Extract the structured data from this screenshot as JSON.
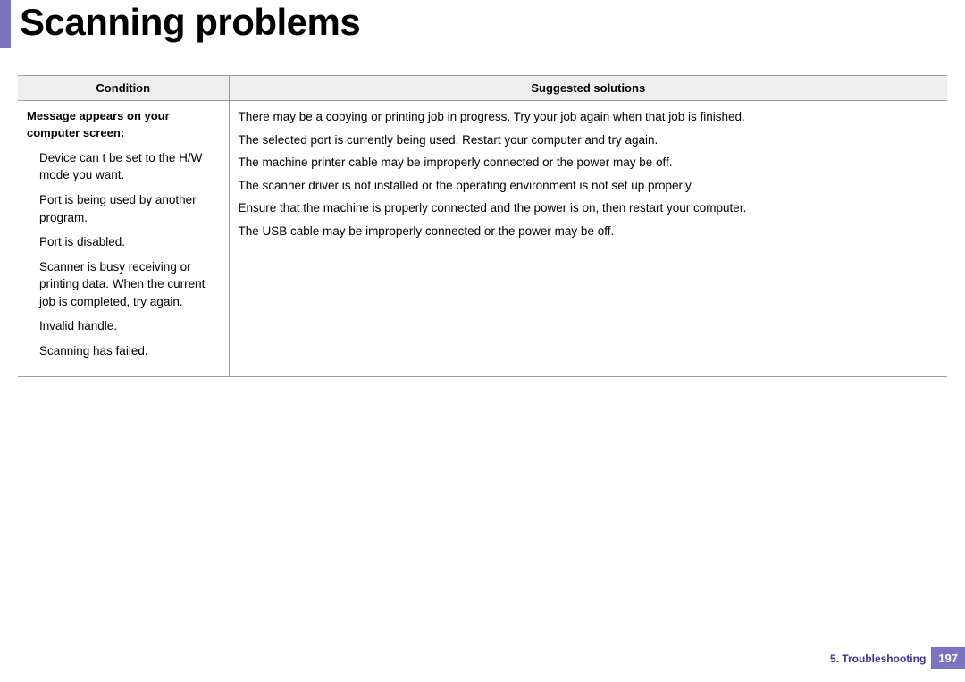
{
  "colors": {
    "accent": "#7b75c0",
    "header_bg": "#eeeeee",
    "border": "#9c9c9c",
    "footer_text": "#3b3394",
    "background": "#ffffff"
  },
  "title": "Scanning problems",
  "table": {
    "headers": {
      "condition": "Condition",
      "solutions": "Suggested solutions"
    },
    "row": {
      "condition_header": "Message appears on your computer screen:",
      "conditions": [
        "Device can t be set to the H/W mode you want.",
        "Port is being used by another program.",
        "Port is disabled.",
        "Scanner is busy receiving or printing data. When the current job is completed, try again.",
        "Invalid handle.",
        "Scanning has failed."
      ],
      "solutions": [
        "There may be a copying or printing job in progress. Try your job again when that job is finished.",
        "The selected port is currently being used. Restart your computer and try again.",
        "The machine printer cable may be improperly connected or the power may be off.",
        "The scanner driver is not installed or the operating environment is not set up properly.",
        "Ensure that the machine is properly connected and the power is on, then restart your computer.",
        "The USB cable may be improperly connected or the power may be off."
      ]
    }
  },
  "footer": {
    "chapter": "5.  Troubleshooting",
    "page": "197"
  }
}
